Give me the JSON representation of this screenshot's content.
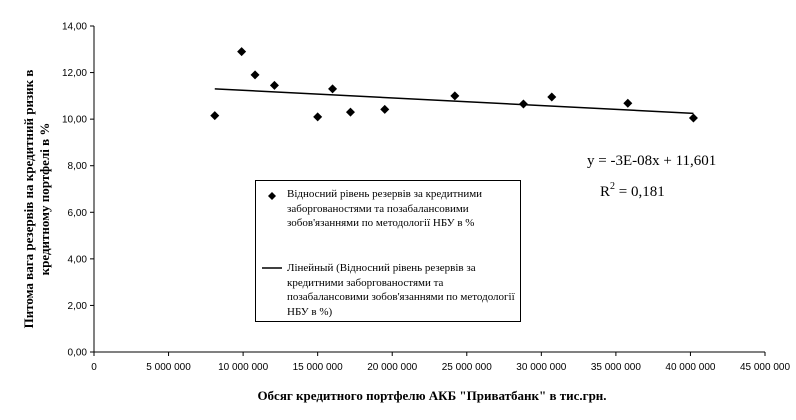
{
  "chart_data": {
    "type": "scatter",
    "xlabel": "Обсяг кредитного портфелю АКБ \"Приватбанк\" в тис.грн.",
    "ylabel_lines": [
      "Питома вага резервів на кредитний ризик в",
      "кредитному портфелі в %"
    ],
    "xlim": [
      0,
      45000000
    ],
    "ylim": [
      0,
      14
    ],
    "x_ticks": [
      0,
      5000000,
      10000000,
      15000000,
      20000000,
      25000000,
      30000000,
      35000000,
      40000000,
      45000000
    ],
    "x_tick_labels": [
      "0",
      "5 000 000",
      "10 000 000",
      "15 000 000",
      "20 000 000",
      "25 000 000",
      "30 000 000",
      "35 000 000",
      "40 000 000",
      "45 000 000"
    ],
    "y_ticks": [
      0,
      2,
      4,
      6,
      8,
      10,
      12,
      14
    ],
    "y_tick_labels": [
      "0,00",
      "2,00",
      "4,00",
      "6,00",
      "8,00",
      "10,00",
      "12,00",
      "14,00"
    ],
    "grid": false,
    "legend_placement": "center",
    "series": [
      {
        "name": "Відносний рівень резервів за кредитними заборгованостями та позабалансовими зобов'язаннями по методології НБУ в %",
        "marker": "diamond",
        "color": "#000000",
        "x": [
          8100000,
          9900000,
          10800000,
          12100000,
          15000000,
          16000000,
          17200000,
          19500000,
          24200000,
          28800000,
          30700000,
          35800000,
          40200000
        ],
        "y": [
          10.15,
          12.9,
          11.9,
          11.45,
          10.1,
          11.3,
          10.3,
          10.42,
          11.0,
          10.65,
          10.95,
          10.68,
          10.05
        ]
      }
    ],
    "trendline": {
      "name": "Лінейный (Відносний рівень резервів за кредитними заборгованостями та позабалансовими зобов'язаннями по методології НБУ в %)",
      "type": "linear",
      "x_start": 8100000,
      "x_end": 40200000,
      "y_start": 11.3,
      "y_end": 10.25,
      "color": "#000000"
    },
    "annotations": {
      "equation": "y = -3E-08x + 11,601",
      "r2_prefix": "R",
      "r2_sup": "2",
      "r2_value": " = 0,181"
    }
  }
}
